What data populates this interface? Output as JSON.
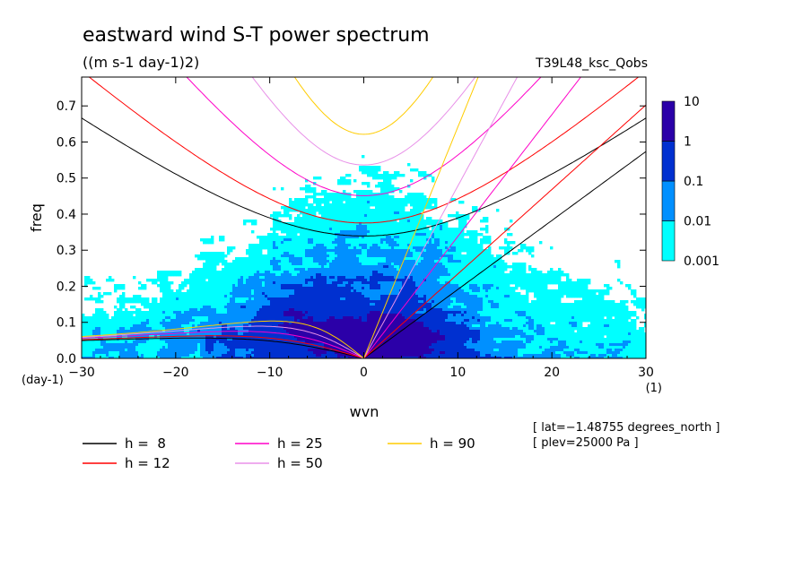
{
  "chart_data": {
    "type": "heatmap",
    "title": "eastward wind S-T power spectrum",
    "subtitle": "((m s-1 day-1)2)",
    "run_label": "T39L48_ksc_Qobs",
    "xlabel": "wvn",
    "ylabel": "freq",
    "x_unit": "(1)",
    "y_unit": "(day-1)",
    "xlim": [
      -30,
      30
    ],
    "ylim": [
      0,
      0.78
    ],
    "xticks": [
      -30,
      -20,
      -10,
      0,
      10,
      20,
      30
    ],
    "xtick_labels": [
      "−30",
      "−20",
      "−10",
      "0",
      "10",
      "20",
      "30"
    ],
    "yticks": [
      0.0,
      0.1,
      0.2,
      0.3,
      0.4,
      0.5,
      0.6,
      0.7
    ],
    "ytick_labels": [
      "0.0",
      "0.1",
      "0.2",
      "0.3",
      "0.4",
      "0.5",
      "0.6",
      "0.7"
    ],
    "colorbar": {
      "levels": [
        0.001,
        0.01,
        0.1,
        1,
        10
      ],
      "level_labels": [
        "0.001",
        "0.01",
        "0.1",
        "1",
        "10"
      ],
      "colors": [
        "#00ffff",
        "#0090ff",
        "#0030d0",
        "#2b00a8"
      ]
    },
    "field": {
      "description_of_shading": "spectral power; strongest at low frequency near wavenumber 0 to +10, extends along eastward (Kelvin) dispersion lines",
      "core_peak": {
        "wvn": 2,
        "freq": 0.04,
        "level": 1
      }
    },
    "dispersion_curves": [
      {
        "h": 8,
        "color": "#000000",
        "label": "h =  8"
      },
      {
        "h": 12,
        "color": "#ff0000",
        "label": "h = 12"
      },
      {
        "h": 25,
        "color": "#ff00c8",
        "label": "h = 25"
      },
      {
        "h": 50,
        "color": "#e890e8",
        "label": "h = 50"
      },
      {
        "h": 90,
        "color": "#ffcc00",
        "label": "h = 90"
      }
    ],
    "legend_position": "bottom-left",
    "annotations": [
      "[ lat=−1.48755 degrees_north ]",
      "[ plev=25000 Pa ]"
    ]
  }
}
